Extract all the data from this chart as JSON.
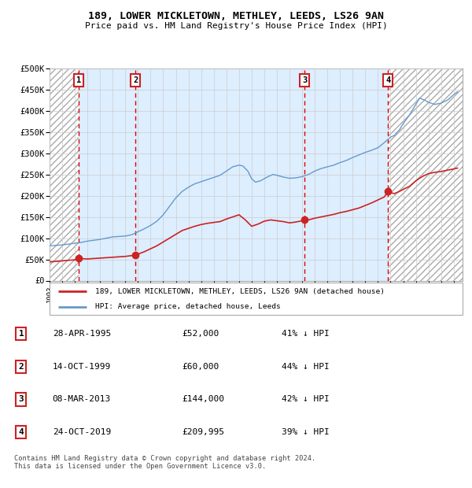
{
  "title1": "189, LOWER MICKLETOWN, METHLEY, LEEDS, LS26 9AN",
  "title2": "Price paid vs. HM Land Registry's House Price Index (HPI)",
  "ylim": [
    0,
    500000
  ],
  "yticks": [
    0,
    50000,
    100000,
    150000,
    200000,
    250000,
    300000,
    350000,
    400000,
    450000,
    500000
  ],
  "ytick_labels": [
    "£0",
    "£50K",
    "£100K",
    "£150K",
    "£200K",
    "£250K",
    "£300K",
    "£350K",
    "£400K",
    "£450K",
    "£500K"
  ],
  "xlim_start": 1993.0,
  "xlim_end": 2025.7,
  "hpi_color": "#6699cc",
  "price_color": "#cc2222",
  "sale_dates": [
    1995.32,
    1999.79,
    2013.18,
    2019.81
  ],
  "sale_prices": [
    52000,
    60000,
    144000,
    209995
  ],
  "sale_labels": [
    "1",
    "2",
    "3",
    "4"
  ],
  "legend_price_label": "189, LOWER MICKLETOWN, METHLEY, LEEDS, LS26 9AN (detached house)",
  "legend_hpi_label": "HPI: Average price, detached house, Leeds",
  "table_rows": [
    [
      "1",
      "28-APR-1995",
      "£52,000",
      "41% ↓ HPI"
    ],
    [
      "2",
      "14-OCT-1999",
      "£60,000",
      "44% ↓ HPI"
    ],
    [
      "3",
      "08-MAR-2013",
      "£144,000",
      "42% ↓ HPI"
    ],
    [
      "4",
      "24-OCT-2019",
      "£209,995",
      "39% ↓ HPI"
    ]
  ],
  "footer": "Contains HM Land Registry data © Crown copyright and database right 2024.\nThis data is licensed under the Open Government Licence v3.0.",
  "hpi_x": [
    1993.0,
    1993.5,
    1994.0,
    1994.5,
    1995.0,
    1995.5,
    1996.0,
    1996.5,
    1997.0,
    1997.5,
    1998.0,
    1998.5,
    1999.0,
    1999.5,
    2000.0,
    2000.5,
    2001.0,
    2001.5,
    2002.0,
    2002.5,
    2003.0,
    2003.5,
    2004.0,
    2004.5,
    2005.0,
    2005.5,
    2006.0,
    2006.5,
    2007.0,
    2007.5,
    2008.0,
    2008.3,
    2008.7,
    2009.0,
    2009.3,
    2009.7,
    2010.0,
    2010.3,
    2010.7,
    2011.0,
    2011.5,
    2012.0,
    2012.5,
    2013.0,
    2013.5,
    2014.0,
    2014.5,
    2015.0,
    2015.5,
    2016.0,
    2016.5,
    2017.0,
    2017.5,
    2018.0,
    2018.5,
    2019.0,
    2019.5,
    2020.0,
    2020.3,
    2020.7,
    2021.0,
    2021.5,
    2022.0,
    2022.3,
    2022.7,
    2023.0,
    2023.5,
    2024.0,
    2024.5,
    2025.0,
    2025.3
  ],
  "hpi_y": [
    82000,
    83000,
    84000,
    86000,
    88000,
    90000,
    93000,
    95000,
    97000,
    100000,
    103000,
    104000,
    105000,
    108000,
    115000,
    122000,
    130000,
    140000,
    155000,
    175000,
    195000,
    210000,
    220000,
    228000,
    233000,
    238000,
    243000,
    248000,
    258000,
    268000,
    272000,
    270000,
    258000,
    240000,
    232000,
    235000,
    240000,
    245000,
    250000,
    248000,
    244000,
    241000,
    242000,
    245000,
    250000,
    258000,
    264000,
    268000,
    272000,
    278000,
    283000,
    290000,
    296000,
    302000,
    307000,
    313000,
    325000,
    338000,
    342000,
    355000,
    370000,
    390000,
    415000,
    430000,
    425000,
    420000,
    415000,
    418000,
    425000,
    438000,
    445000
  ],
  "price_x": [
    1993.0,
    1995.0,
    1995.32,
    1996.0,
    1997.0,
    1998.0,
    1999.0,
    1999.79,
    2000.5,
    2001.5,
    2002.5,
    2003.5,
    2004.5,
    2005.0,
    2005.5,
    2006.0,
    2006.5,
    2007.0,
    2007.5,
    2008.0,
    2008.5,
    2009.0,
    2009.5,
    2010.0,
    2010.5,
    2011.0,
    2011.5,
    2012.0,
    2012.5,
    2013.0,
    2013.18,
    2013.5,
    2014.0,
    2014.5,
    2015.0,
    2015.5,
    2016.0,
    2016.5,
    2017.0,
    2017.5,
    2018.0,
    2018.5,
    2019.0,
    2019.5,
    2019.81,
    2020.0,
    2020.3,
    2020.7,
    2021.0,
    2021.5,
    2022.0,
    2022.5,
    2023.0,
    2023.5,
    2024.0,
    2024.5,
    2025.0,
    2025.3
  ],
  "price_y": [
    44000,
    49000,
    52000,
    51000,
    53000,
    55000,
    57000,
    60000,
    68000,
    82000,
    100000,
    118000,
    128000,
    132000,
    135000,
    137000,
    139000,
    145000,
    150000,
    155000,
    143000,
    128000,
    133000,
    140000,
    143000,
    141000,
    139000,
    136000,
    138000,
    141000,
    144000,
    143000,
    147000,
    150000,
    153000,
    156000,
    160000,
    163000,
    167000,
    171000,
    177000,
    183000,
    190000,
    197000,
    209995,
    207000,
    205000,
    210000,
    215000,
    222000,
    235000,
    245000,
    252000,
    255000,
    257000,
    260000,
    263000,
    265000
  ]
}
